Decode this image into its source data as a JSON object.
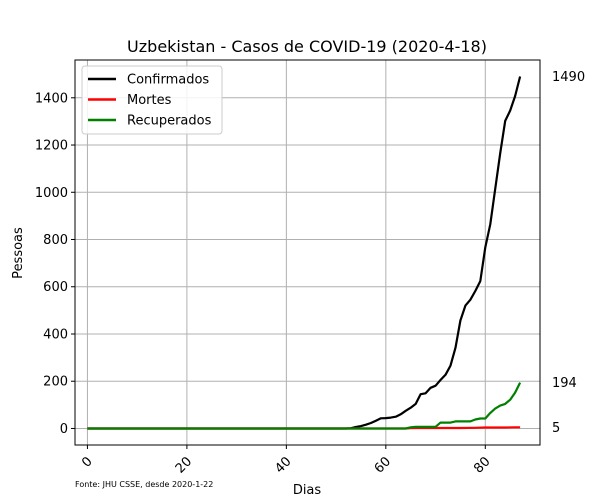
{
  "chart_data": {
    "type": "line",
    "title": "Uzbekistan - Casos de COVID-19 (2020-4-18)",
    "xlabel": "Dias",
    "ylabel": "Pessoas",
    "xlim": [
      -2.5,
      91
    ],
    "ylim": [
      -70,
      1560
    ],
    "xticks": [
      0,
      20,
      40,
      60,
      80
    ],
    "yticks": [
      0,
      200,
      400,
      600,
      800,
      1000,
      1200,
      1400
    ],
    "grid": true,
    "legend_position": "top-left",
    "source_note": "Fonte: JHU CSSE, desde 2020-1-22",
    "series": [
      {
        "name": "Confirmados",
        "color": "#000000",
        "end_label": "1490",
        "points": [
          [
            0,
            0
          ],
          [
            52,
            0
          ],
          [
            53,
            1
          ],
          [
            54,
            6
          ],
          [
            55,
            10
          ],
          [
            56,
            16
          ],
          [
            57,
            23
          ],
          [
            58,
            33
          ],
          [
            59,
            43
          ],
          [
            60,
            44
          ],
          [
            61,
            46
          ],
          [
            62,
            50
          ],
          [
            63,
            60
          ],
          [
            64,
            75
          ],
          [
            65,
            88
          ],
          [
            66,
            104
          ],
          [
            67,
            145
          ],
          [
            68,
            149
          ],
          [
            69,
            172
          ],
          [
            70,
            181
          ],
          [
            71,
            205
          ],
          [
            72,
            227
          ],
          [
            73,
            266
          ],
          [
            74,
            342
          ],
          [
            75,
            457
          ],
          [
            76,
            520
          ],
          [
            77,
            545
          ],
          [
            78,
            582
          ],
          [
            79,
            624
          ],
          [
            80,
            767
          ],
          [
            81,
            865
          ],
          [
            82,
            1014
          ],
          [
            83,
            1165
          ],
          [
            84,
            1302
          ],
          [
            85,
            1346
          ],
          [
            86,
            1407
          ],
          [
            87,
            1490
          ]
        ]
      },
      {
        "name": "Mortes",
        "color": "#ff0000",
        "end_label": "5",
        "points": [
          [
            0,
            0
          ],
          [
            64,
            0
          ],
          [
            65,
            1
          ],
          [
            66,
            2
          ],
          [
            70,
            2
          ],
          [
            72,
            2
          ],
          [
            75,
            2
          ],
          [
            78,
            3
          ],
          [
            80,
            4
          ],
          [
            82,
            4
          ],
          [
            84,
            4
          ],
          [
            86,
            5
          ],
          [
            87,
            5
          ]
        ]
      },
      {
        "name": "Recuperados",
        "color": "#008000",
        "end_label": "194",
        "points": [
          [
            0,
            0
          ],
          [
            64,
            0
          ],
          [
            65,
            5
          ],
          [
            66,
            7
          ],
          [
            70,
            7
          ],
          [
            71,
            25
          ],
          [
            73,
            25
          ],
          [
            74,
            30
          ],
          [
            77,
            30
          ],
          [
            78,
            38
          ],
          [
            79,
            42
          ],
          [
            80,
            42
          ],
          [
            81,
            66
          ],
          [
            82,
            84
          ],
          [
            83,
            97
          ],
          [
            84,
            104
          ],
          [
            85,
            122
          ],
          [
            86,
            152
          ],
          [
            87,
            194
          ]
        ]
      }
    ]
  }
}
